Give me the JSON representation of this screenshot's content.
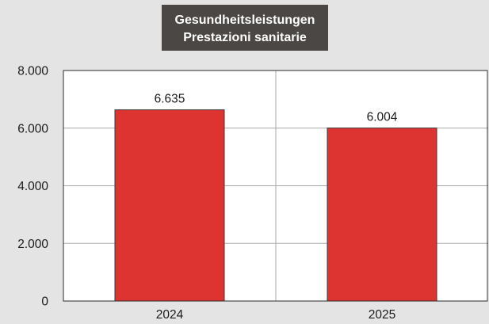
{
  "chart_data": {
    "type": "bar",
    "title": "Gesundheitsleistungen",
    "subtitle": "Prestazioni sanitarie",
    "categories": [
      "2024",
      "2025"
    ],
    "values": [
      6635,
      6004
    ],
    "data_labels": [
      "6.635",
      "6.004"
    ],
    "ylim": [
      0,
      8000
    ],
    "yticks": [
      0,
      2000,
      4000,
      6000,
      8000
    ],
    "ytick_labels": [
      "0",
      "2.000",
      "4.000",
      "6.000",
      "8.000"
    ],
    "xlabel": "",
    "ylabel": "",
    "grid": true,
    "legend": "none",
    "colors": {
      "bar": "#de3431",
      "bar_edge": "#3a3a3a",
      "title_box": "#4a4744",
      "title_text": "#ffffff",
      "plot_background": "#ffffff",
      "page_background": "#e4e4e4",
      "gridline": "#a8a8a8"
    }
  }
}
